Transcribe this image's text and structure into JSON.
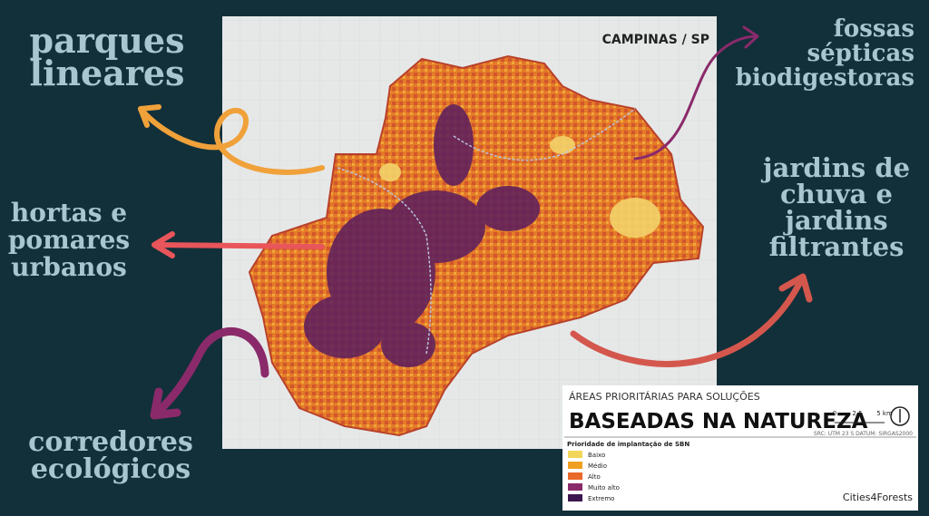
{
  "labels": [
    {
      "lines": [
        "parques",
        "lineares"
      ]
    },
    {
      "lines": [
        "hortas e",
        "pomares",
        "urbanos"
      ]
    },
    {
      "lines": [
        "corredores",
        "ecológicos"
      ]
    },
    {
      "lines": [
        "fossas",
        "sépticas",
        "biodigestoras"
      ]
    },
    {
      "lines": [
        "jardins de",
        "chuva e",
        "jardins",
        "filtrantes"
      ]
    }
  ],
  "map": {
    "title": "CAMPINAS / SP"
  },
  "legend": {
    "kicker": "ÁREAS PRIORITÁRIAS PARA SOLUÇÕES",
    "title": "BASEADAS NA NATUREZA",
    "scale": [
      "0",
      "2.5",
      "5 km"
    ],
    "crs": "SRC: UTM 23 S DATUM: SIRGAS2000",
    "subtitle": "Prioridade de implantação de SBN",
    "items": [
      {
        "name": "Baixo",
        "color": "#f2d65a"
      },
      {
        "name": "Médio",
        "color": "#f0a020"
      },
      {
        "name": "Alto",
        "color": "#e8692a"
      },
      {
        "name": "Muito alto",
        "color": "#8a2a6a"
      },
      {
        "name": "Extremo",
        "color": "#3d1650"
      }
    ],
    "brand": "Cities4Forests"
  }
}
